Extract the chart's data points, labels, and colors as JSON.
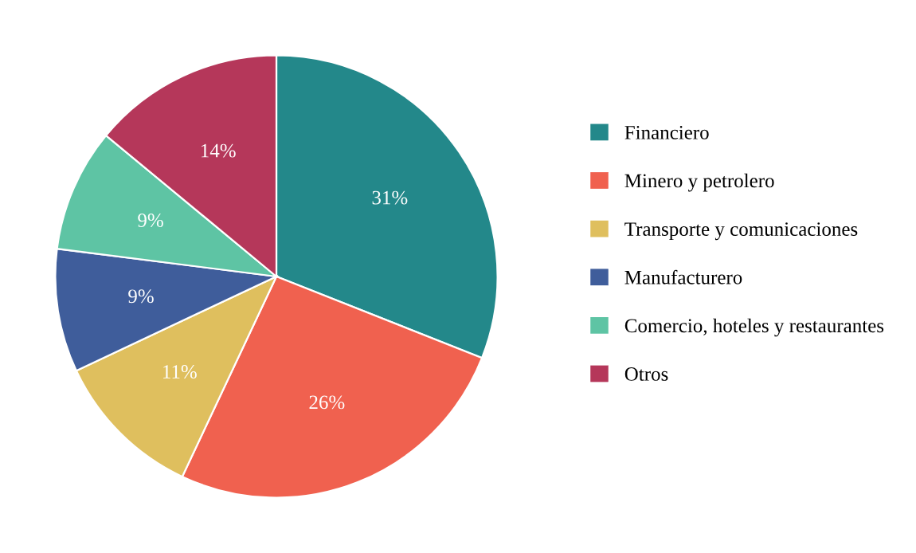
{
  "chart_data": {
    "type": "pie",
    "categories": [
      "Financiero",
      "Minero y petrolero",
      "Transporte y comunicaciones",
      "Manufacturero",
      "Comercio, hoteles y restaurantes",
      "Otros"
    ],
    "values": [
      31,
      26,
      11,
      9,
      9,
      14
    ],
    "colors": [
      "#23888a",
      "#f0614f",
      "#dfbf5e",
      "#3f5d9b",
      "#5ec4a4",
      "#b5375a"
    ],
    "value_labels": [
      "31%",
      "26%",
      "11%",
      "9%",
      "9%",
      "14%"
    ],
    "legend": "right"
  }
}
